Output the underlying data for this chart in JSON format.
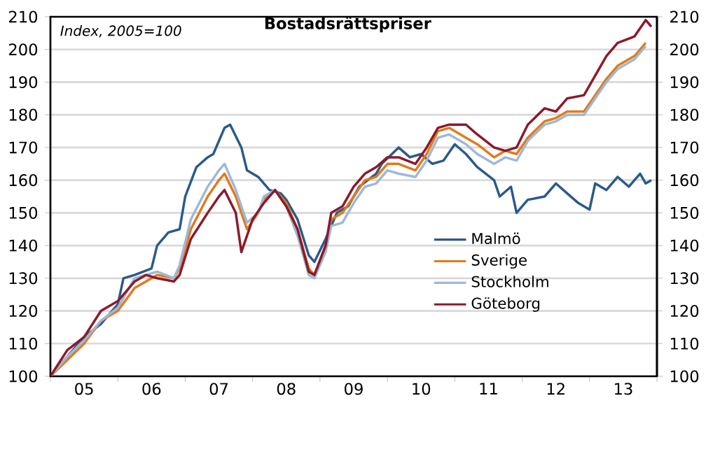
{
  "chart_data": {
    "type": "line",
    "title": "Bostadsrättspriser",
    "annotations": [
      "Index, 2005=100"
    ],
    "xlim": [
      "2005-01",
      "2014-01"
    ],
    "ylim": [
      100,
      210
    ],
    "xticks": [
      {
        "value": "2005-01",
        "label": null
      },
      {
        "value": "2005-07",
        "label": "05"
      },
      {
        "value": "2006-01",
        "label": null
      },
      {
        "value": "2006-07",
        "label": "06"
      },
      {
        "value": "2007-01",
        "label": null
      },
      {
        "value": "2007-07",
        "label": "07"
      },
      {
        "value": "2008-01",
        "label": null
      },
      {
        "value": "2008-07",
        "label": "08"
      },
      {
        "value": "2009-01",
        "label": null
      },
      {
        "value": "2009-07",
        "label": "09"
      },
      {
        "value": "2010-01",
        "label": null
      },
      {
        "value": "2010-07",
        "label": "10"
      },
      {
        "value": "2011-01",
        "label": null
      },
      {
        "value": "2011-07",
        "label": "11"
      },
      {
        "value": "2012-01",
        "label": null
      },
      {
        "value": "2012-07",
        "label": "12"
      },
      {
        "value": "2013-01",
        "label": null
      },
      {
        "value": "2013-07",
        "label": "13"
      },
      {
        "value": "2014-01",
        "label": null
      }
    ],
    "yticks": [
      100,
      110,
      120,
      130,
      140,
      150,
      160,
      170,
      180,
      190,
      200,
      210
    ],
    "y2lim": [
      100,
      210
    ],
    "y2ticks": [
      100,
      110,
      120,
      130,
      140,
      150,
      160,
      170,
      180,
      190,
      200,
      210
    ],
    "grid": "y",
    "legend": "bottom right",
    "marker": "none",
    "line_style": "solid",
    "series": [
      {
        "name": "Malmö",
        "color": "#2b5a8a",
        "x": [
          "2005-01",
          "2005-04",
          "2005-07",
          "2005-10",
          "2006-01",
          "2006-02",
          "2006-04",
          "2006-07",
          "2006-08",
          "2006-10",
          "2006-12",
          "2007-01",
          "2007-03",
          "2007-05",
          "2007-06",
          "2007-08",
          "2007-09",
          "2007-11",
          "2007-12",
          "2008-02",
          "2008-04",
          "2008-06",
          "2008-07",
          "2008-09",
          "2008-11",
          "2008-12",
          "2009-02",
          "2009-04",
          "2009-06",
          "2009-08",
          "2009-11",
          "2009-12",
          "2010-03",
          "2010-05",
          "2010-07",
          "2010-09",
          "2010-11",
          "2011-01",
          "2011-03",
          "2011-05",
          "2011-08",
          "2011-09",
          "2011-11",
          "2011-12",
          "2012-02",
          "2012-05",
          "2012-07",
          "2012-09",
          "2012-11",
          "2013-01",
          "2013-02",
          "2013-04",
          "2013-06",
          "2013-08",
          "2013-10",
          "2013-11",
          "2013-12"
        ],
        "values": [
          100,
          106,
          112,
          116,
          122,
          130,
          131,
          133,
          140,
          144,
          145,
          155,
          164,
          167,
          168,
          176,
          177,
          170,
          163,
          161,
          157,
          156,
          154,
          148,
          137,
          135,
          142,
          150,
          152,
          158,
          162,
          165,
          170,
          167,
          168,
          165,
          166,
          171,
          168,
          164,
          160,
          155,
          158,
          150,
          154,
          155,
          159,
          156,
          153,
          151,
          159,
          157,
          161,
          158,
          162,
          159,
          160
        ]
      },
      {
        "name": "Sverige",
        "color": "#e07b1a",
        "x": [
          "2005-01",
          "2005-04",
          "2005-07",
          "2005-10",
          "2006-01",
          "2006-04",
          "2006-06",
          "2006-08",
          "2006-11",
          "2006-12",
          "2007-02",
          "2007-05",
          "2007-07",
          "2007-08",
          "2007-10",
          "2007-12",
          "2008-02",
          "2008-03",
          "2008-05",
          "2008-07",
          "2008-09",
          "2008-11",
          "2008-12",
          "2009-02",
          "2009-03",
          "2009-05",
          "2009-07",
          "2009-09",
          "2009-11",
          "2010-01",
          "2010-03",
          "2010-06",
          "2010-08",
          "2010-10",
          "2010-12",
          "2011-03",
          "2011-05",
          "2011-08",
          "2011-10",
          "2011-12",
          "2012-02",
          "2012-05",
          "2012-07",
          "2012-09",
          "2012-12",
          "2013-02",
          "2013-04",
          "2013-06",
          "2013-09",
          "2013-11"
        ],
        "values": [
          100,
          105,
          110,
          117,
          120,
          127,
          129,
          131,
          130,
          133,
          145,
          155,
          160,
          162,
          155,
          145,
          150,
          154,
          157,
          153,
          145,
          133,
          131,
          140,
          148,
          150,
          155,
          160,
          161,
          165,
          165,
          163,
          168,
          175,
          176,
          173,
          171,
          167,
          169,
          168,
          173,
          178,
          179,
          181,
          181,
          186,
          191,
          195,
          198,
          202
        ]
      },
      {
        "name": "Stockholm",
        "color": "#9fb8d8",
        "x": [
          "2005-01",
          "2005-04",
          "2005-07",
          "2005-10",
          "2006-01",
          "2006-04",
          "2006-06",
          "2006-08",
          "2006-11",
          "2006-12",
          "2007-02",
          "2007-05",
          "2007-07",
          "2007-08",
          "2007-10",
          "2007-12",
          "2008-02",
          "2008-03",
          "2008-05",
          "2008-07",
          "2008-09",
          "2008-11",
          "2008-12",
          "2009-02",
          "2009-03",
          "2009-05",
          "2009-07",
          "2009-09",
          "2009-11",
          "2010-01",
          "2010-03",
          "2010-06",
          "2010-08",
          "2010-10",
          "2010-12",
          "2011-03",
          "2011-05",
          "2011-08",
          "2011-10",
          "2011-12",
          "2012-02",
          "2012-05",
          "2012-07",
          "2012-09",
          "2012-12",
          "2013-02",
          "2013-04",
          "2013-06",
          "2013-09",
          "2013-11"
        ],
        "values": [
          100,
          106,
          111,
          117,
          121,
          130,
          131,
          132,
          130,
          134,
          148,
          158,
          163,
          165,
          157,
          147,
          150,
          155,
          157,
          152,
          143,
          131,
          130,
          138,
          146,
          147,
          153,
          158,
          159,
          163,
          162,
          161,
          166,
          173,
          174,
          171,
          168,
          165,
          167,
          166,
          172,
          177,
          178,
          180,
          180,
          185,
          190,
          194,
          197,
          201
        ]
      },
      {
        "name": "Göteborg",
        "color": "#8b1a2b",
        "x": [
          "2005-01",
          "2005-04",
          "2005-07",
          "2005-10",
          "2006-01",
          "2006-04",
          "2006-06",
          "2006-08",
          "2006-11",
          "2006-12",
          "2007-02",
          "2007-05",
          "2007-07",
          "2007-08",
          "2007-10",
          "2007-11",
          "2008-01",
          "2008-03",
          "2008-05",
          "2008-07",
          "2008-09",
          "2008-11",
          "2008-12",
          "2009-02",
          "2009-03",
          "2009-05",
          "2009-07",
          "2009-09",
          "2009-11",
          "2010-01",
          "2010-03",
          "2010-06",
          "2010-08",
          "2010-10",
          "2010-12",
          "2011-03",
          "2011-05",
          "2011-08",
          "2011-10",
          "2011-12",
          "2012-02",
          "2012-05",
          "2012-07",
          "2012-09",
          "2012-12",
          "2013-02",
          "2013-04",
          "2013-06",
          "2013-09",
          "2013-11",
          "2013-12"
        ],
        "values": [
          100,
          108,
          112,
          120,
          123,
          129,
          131,
          130,
          129,
          131,
          142,
          150,
          155,
          157,
          150,
          138,
          148,
          153,
          157,
          152,
          145,
          132,
          131,
          140,
          150,
          152,
          158,
          162,
          164,
          167,
          167,
          165,
          170,
          176,
          177,
          177,
          174,
          170,
          169,
          170,
          177,
          182,
          181,
          185,
          186,
          192,
          198,
          202,
          204,
          209,
          207
        ]
      }
    ]
  }
}
